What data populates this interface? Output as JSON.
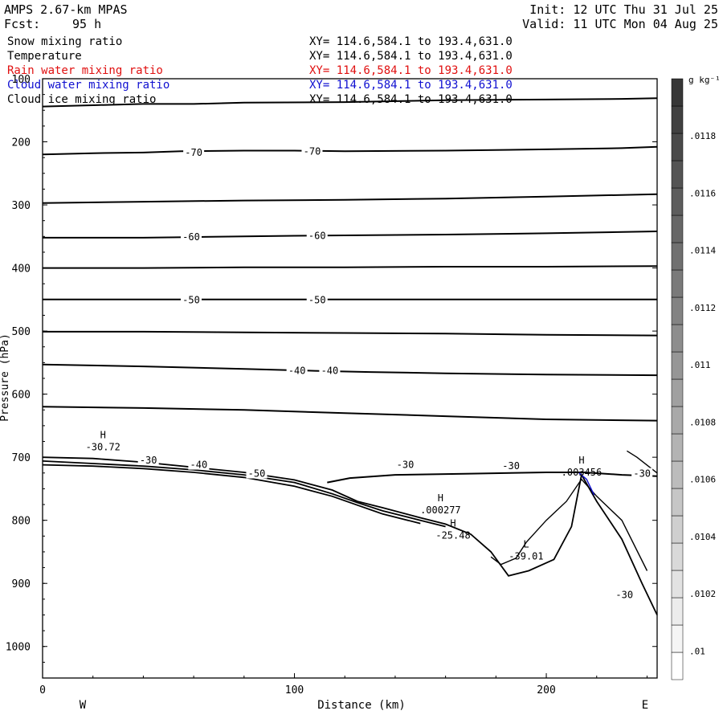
{
  "header": {
    "model": "AMPS 2.67-km MPAS",
    "fcst_label": "Fcst:",
    "fcst_value": "95 h",
    "init": "Init: 12 UTC Thu 31 Jul 25",
    "valid": "Valid: 11 UTC Mon 04 Aug 25"
  },
  "fields": [
    {
      "name": "Snow mixing ratio",
      "range": "XY= 114.6,584.1 to 193.4,631.0",
      "color": "#000000"
    },
    {
      "name": "Temperature",
      "range": "XY= 114.6,584.1 to 193.4,631.0",
      "color": "#000000"
    },
    {
      "name": "Rain water mixing ratio",
      "range": "XY= 114.6,584.1 to 193.4,631.0",
      "color": "#e01010"
    },
    {
      "name": "Cloud water mixing ratio",
      "range": "XY= 114.6,584.1 to 193.4,631.0",
      "color": "#1010d0"
    },
    {
      "name": "Cloud ice mixing ratio",
      "range": "XY= 114.6,584.1 to 193.4,631.0",
      "color": "#000000"
    }
  ],
  "chart_data": {
    "type": "line",
    "xlabel": "Distance (km)",
    "ylabel": "Pressure (hPa)",
    "x_range": [
      0,
      244
    ],
    "y_range": [
      100,
      1050
    ],
    "x_ticks": [
      0,
      100,
      200
    ],
    "y_ticks": [
      100,
      200,
      300,
      400,
      500,
      600,
      700,
      800,
      900,
      1000
    ],
    "direction_left": "W",
    "direction_right": "E",
    "temperature_contours": [
      {
        "points": [
          [
            0,
            144
          ],
          [
            20,
            142
          ],
          [
            40,
            140
          ],
          [
            60,
            140
          ],
          [
            80,
            138
          ],
          [
            120,
            137
          ],
          [
            160,
            134
          ],
          [
            200,
            133
          ],
          [
            230,
            132
          ],
          [
            244,
            131
          ]
        ]
      },
      {
        "points": [
          [
            0,
            220
          ],
          [
            20,
            218
          ],
          [
            40,
            217
          ],
          [
            55,
            215
          ],
          [
            80,
            214
          ],
          [
            100,
            214
          ],
          [
            120,
            215
          ],
          [
            160,
            214
          ],
          [
            200,
            212
          ],
          [
            230,
            210
          ],
          [
            244,
            208
          ]
        ]
      },
      {
        "points": [
          [
            0,
            297
          ],
          [
            40,
            295
          ],
          [
            80,
            293
          ],
          [
            120,
            292
          ],
          [
            160,
            290
          ],
          [
            200,
            287
          ],
          [
            244,
            283
          ]
        ]
      },
      {
        "points": [
          [
            0,
            352
          ],
          [
            40,
            352
          ],
          [
            60,
            351
          ],
          [
            80,
            350
          ],
          [
            100,
            349
          ],
          [
            130,
            348
          ],
          [
            160,
            347
          ],
          [
            200,
            345
          ],
          [
            244,
            342
          ]
        ]
      },
      {
        "points": [
          [
            0,
            400
          ],
          [
            40,
            400
          ],
          [
            80,
            399
          ],
          [
            120,
            399
          ],
          [
            160,
            398
          ],
          [
            200,
            398
          ],
          [
            244,
            397
          ]
        ]
      },
      {
        "points": [
          [
            0,
            450
          ],
          [
            40,
            450
          ],
          [
            80,
            450
          ],
          [
            120,
            450
          ],
          [
            160,
            450
          ],
          [
            200,
            450
          ],
          [
            244,
            450
          ]
        ]
      },
      {
        "points": [
          [
            0,
            501
          ],
          [
            40,
            501
          ],
          [
            80,
            502
          ],
          [
            120,
            503
          ],
          [
            160,
            504
          ],
          [
            200,
            506
          ],
          [
            244,
            507
          ]
        ]
      },
      {
        "points": [
          [
            0,
            553
          ],
          [
            40,
            556
          ],
          [
            80,
            560
          ],
          [
            108,
            563
          ],
          [
            130,
            565
          ],
          [
            160,
            567
          ],
          [
            200,
            569
          ],
          [
            244,
            570
          ]
        ]
      },
      {
        "points": [
          [
            0,
            620
          ],
          [
            40,
            622
          ],
          [
            80,
            625
          ],
          [
            120,
            630
          ],
          [
            160,
            635
          ],
          [
            200,
            640
          ],
          [
            244,
            642
          ]
        ]
      },
      {
        "points": [
          [
            113,
            740
          ],
          [
            122,
            733
          ],
          [
            140,
            728
          ],
          [
            170,
            726
          ],
          [
            200,
            724
          ],
          [
            215,
            724
          ],
          [
            230,
            728
          ],
          [
            244,
            730
          ]
        ]
      }
    ],
    "contour_labels": [
      {
        "text": "-70",
        "x": 60,
        "p": 217
      },
      {
        "text": "-70",
        "x": 107,
        "p": 215
      },
      {
        "text": "-60",
        "x": 59,
        "p": 351
      },
      {
        "text": "-60",
        "x": 109,
        "p": 349
      },
      {
        "text": "-50",
        "x": 59,
        "p": 451
      },
      {
        "text": "-50",
        "x": 109,
        "p": 451
      },
      {
        "text": "-40",
        "x": 101,
        "p": 563
      },
      {
        "text": "-40",
        "x": 114,
        "p": 563
      },
      {
        "text": "-40",
        "x": 62,
        "p": 712
      },
      {
        "text": "-50",
        "x": 85,
        "p": 726
      },
      {
        "text": "-30",
        "x": 144,
        "p": 712
      },
      {
        "text": "-30",
        "x": 186,
        "p": 714
      },
      {
        "text": "-30",
        "x": 238,
        "p": 726
      },
      {
        "text": "-30",
        "x": 231,
        "p": 918
      },
      {
        "text": "-30",
        "x": 42,
        "p": 705
      }
    ],
    "terrain_lines": [
      {
        "points": [
          [
            0,
            700
          ],
          [
            20,
            702
          ],
          [
            40,
            708
          ],
          [
            60,
            716
          ],
          [
            80,
            724
          ],
          [
            100,
            736
          ],
          [
            115,
            752
          ],
          [
            125,
            770
          ],
          [
            135,
            780
          ],
          [
            150,
            796
          ],
          [
            160,
            806
          ],
          [
            170,
            822
          ],
          [
            178,
            850
          ],
          [
            185,
            888
          ],
          [
            193,
            880
          ],
          [
            203,
            862
          ],
          [
            210,
            810
          ],
          [
            214,
            728
          ],
          [
            220,
            770
          ],
          [
            230,
            830
          ],
          [
            238,
            900
          ],
          [
            244,
            950
          ]
        ]
      },
      {
        "points": [
          [
            0,
            706
          ],
          [
            20,
            710
          ],
          [
            40,
            714
          ],
          [
            60,
            720
          ],
          [
            80,
            728
          ],
          [
            100,
            740
          ],
          [
            115,
            758
          ],
          [
            125,
            772
          ],
          [
            135,
            785
          ],
          [
            150,
            800
          ],
          [
            160,
            810
          ]
        ]
      },
      {
        "points": [
          [
            0,
            712
          ],
          [
            20,
            714
          ],
          [
            40,
            718
          ],
          [
            60,
            724
          ],
          [
            80,
            732
          ],
          [
            100,
            746
          ],
          [
            115,
            762
          ],
          [
            125,
            776
          ],
          [
            135,
            790
          ],
          [
            150,
            805
          ]
        ]
      }
    ],
    "mixing_ratio_lines": [
      {
        "points": [
          [
            178,
            858
          ],
          [
            182,
            870
          ],
          [
            188,
            860
          ],
          [
            192,
            835
          ],
          [
            200,
            800
          ],
          [
            208,
            770
          ],
          [
            214,
            735
          ],
          [
            220,
            762
          ],
          [
            230,
            800
          ],
          [
            240,
            880
          ]
        ],
        "color": "#000000"
      },
      {
        "points": [
          [
            213,
            725
          ],
          [
            216,
            735
          ],
          [
            219,
            760
          ]
        ],
        "color": "#1010d0"
      },
      {
        "points": [
          [
            232,
            690
          ],
          [
            236,
            700
          ],
          [
            244,
            725
          ]
        ],
        "color": "#000000"
      }
    ],
    "extrema_labels": [
      {
        "mark": "H",
        "value": "-30.72",
        "x": 24,
        "p": 675
      },
      {
        "mark": "H",
        "value": ".000277",
        "x": 158,
        "p": 775
      },
      {
        "mark": "H",
        "value": "-25.48",
        "x": 163,
        "p": 815
      },
      {
        "mark": "L",
        "value": "-39.01",
        "x": 192,
        "p": 848
      },
      {
        "mark": "H",
        "value": ".003456",
        "x": 214,
        "p": 715
      }
    ],
    "colorbar": {
      "unit": "g kg⁻¹",
      "labels": [
        ".01",
        ".0102",
        ".0104",
        ".0106",
        ".0108",
        ".011",
        ".0112",
        ".0114",
        ".0116",
        ".0118"
      ],
      "range": [
        0.0099,
        0.012
      ]
    }
  }
}
